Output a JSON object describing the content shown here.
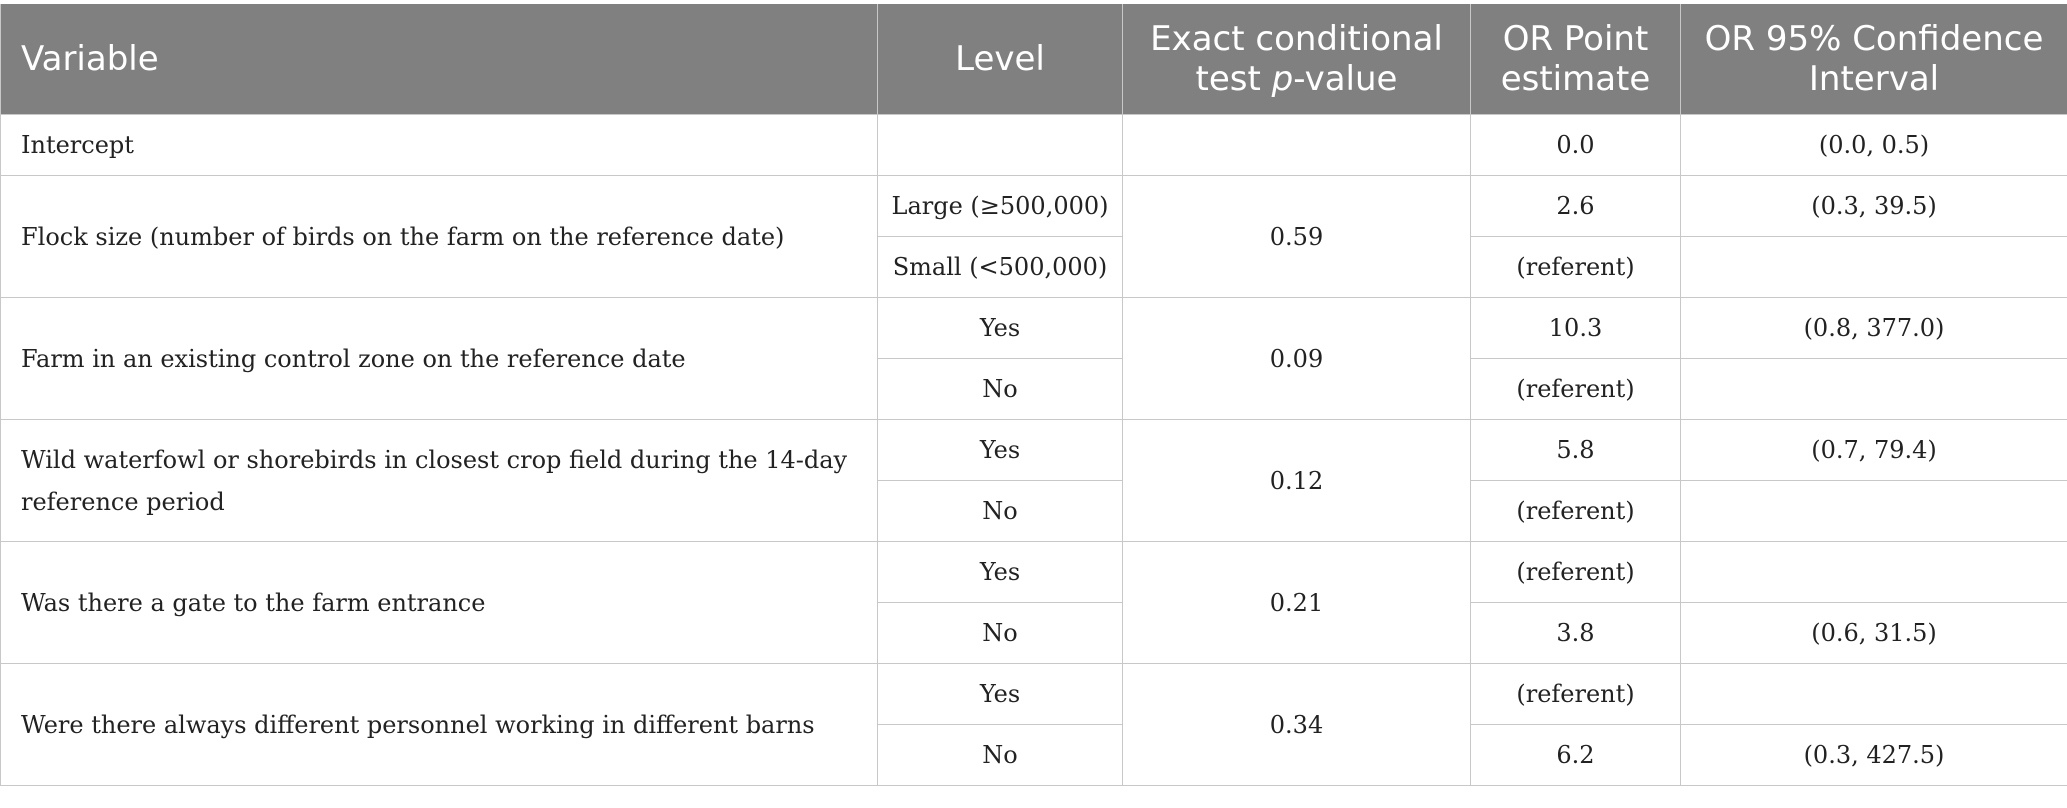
{
  "headers": {
    "variable": "Variable",
    "level": "Level",
    "pvalue_pre": "Exact conditional test ",
    "pvalue_italic": "p",
    "pvalue_post": "-value",
    "or_point": "OR Point estimate",
    "or_ci": "OR 95% Confidence Interval"
  },
  "intercept": {
    "variable": "Intercept",
    "level": "",
    "pvalue": "",
    "or": "0.0",
    "ci": "(0.0, 0.5)"
  },
  "groups": [
    {
      "variable": "Flock size (number of birds on the farm on the reference date)",
      "pvalue": "0.59",
      "rows": [
        {
          "level": "Large (≥500,000)",
          "or": "2.6",
          "ci": "(0.3, 39.5)"
        },
        {
          "level": "Small (<500,000)",
          "or": "(referent)",
          "ci": ""
        }
      ]
    },
    {
      "variable": "Farm in an existing control zone on the reference date",
      "pvalue": "0.09",
      "rows": [
        {
          "level": "Yes",
          "or": "10.3",
          "ci": "(0.8, 377.0)"
        },
        {
          "level": "No",
          "or": "(referent)",
          "ci": ""
        }
      ]
    },
    {
      "variable": "Wild waterfowl or shorebirds in closest crop field during the 14-day reference period",
      "pvalue": "0.12",
      "rows": [
        {
          "level": "Yes",
          "or": "5.8",
          "ci": "(0.7, 79.4)"
        },
        {
          "level": "No",
          "or": "(referent)",
          "ci": ""
        }
      ]
    },
    {
      "variable": "Was there a gate to the farm entrance",
      "pvalue": "0.21",
      "rows": [
        {
          "level": "Yes",
          "or": "(referent)",
          "ci": ""
        },
        {
          "level": "No",
          "or": "3.8",
          "ci": "(0.6, 31.5)"
        }
      ]
    },
    {
      "variable": "Were there always different personnel working in different barns",
      "pvalue": "0.34",
      "rows": [
        {
          "level": "Yes",
          "or": "(referent)",
          "ci": ""
        },
        {
          "level": "No",
          "or": "6.2",
          "ci": "(0.3, 427.5)"
        }
      ]
    }
  ]
}
